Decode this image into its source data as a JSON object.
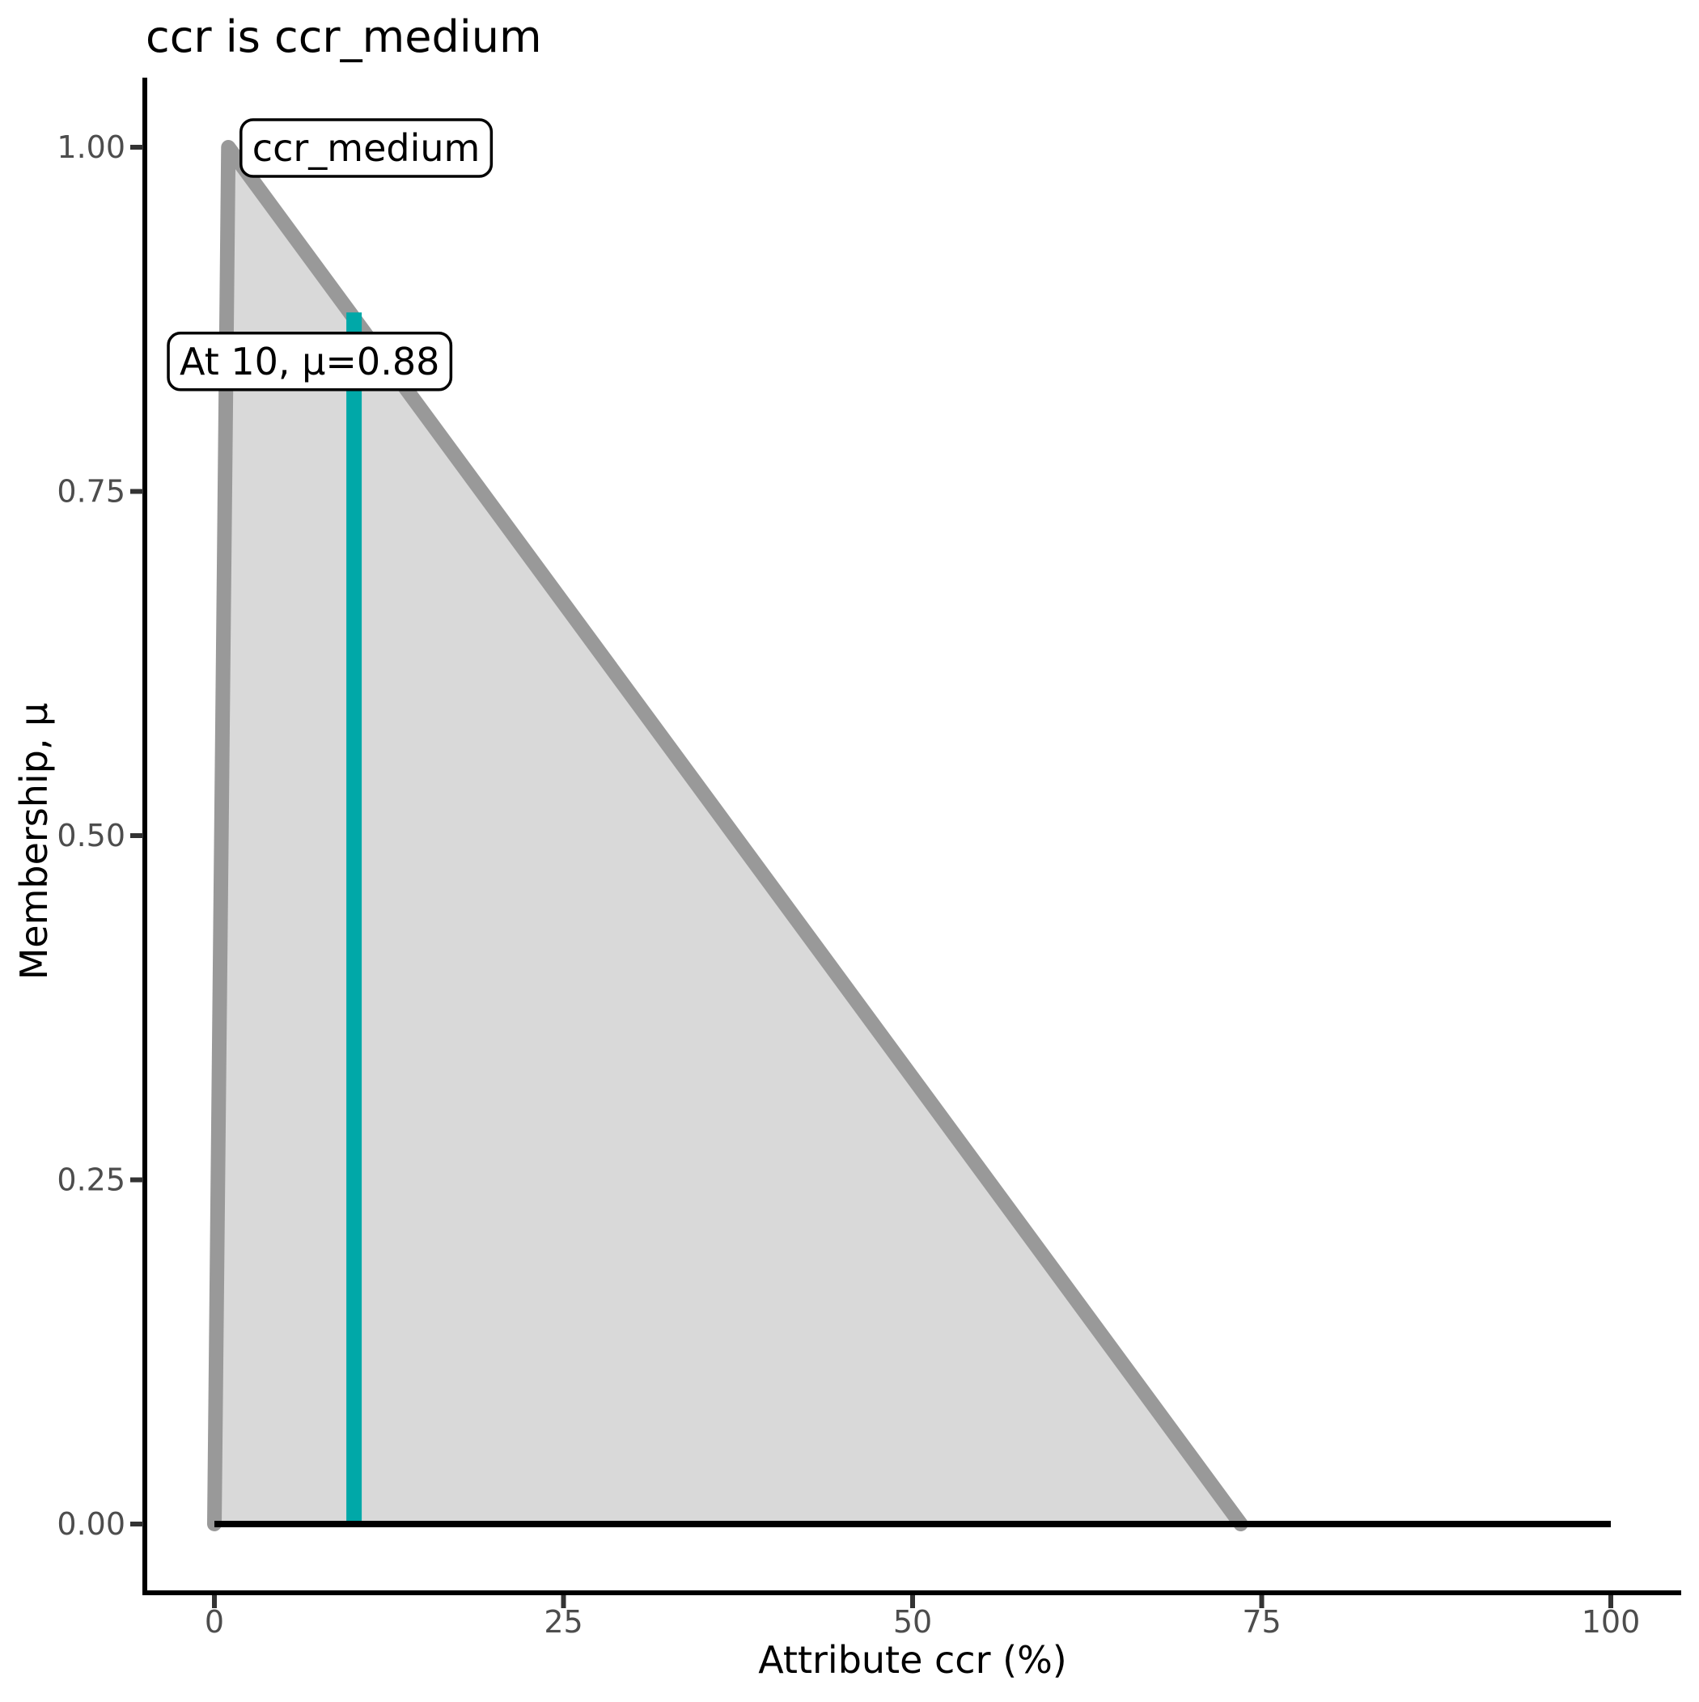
{
  "chart_data": {
    "type": "area",
    "title": "ccr is ccr_medium",
    "xlabel": "Attribute ccr (%)",
    "ylabel": "Membership, μ",
    "xlim": [
      0,
      100
    ],
    "ylim": [
      0,
      1
    ],
    "x_ticks": [
      0,
      25,
      50,
      75,
      100
    ],
    "x_tick_labels": [
      "0",
      "25",
      "50",
      "75",
      "100"
    ],
    "y_ticks": [
      0,
      0.25,
      0.5,
      0.75,
      1
    ],
    "y_tick_labels": [
      "0.00",
      "0.25",
      "0.50",
      "0.75",
      "1.00"
    ],
    "grid": false,
    "legend": "none",
    "membership_function": {
      "name": "ccr_medium",
      "shape": "triangle",
      "points_x": [
        0,
        1,
        73.5
      ],
      "points_y": [
        0,
        1,
        0
      ]
    },
    "universe_baseline": {
      "x_start": 0,
      "x_end": 100,
      "y": 0
    },
    "input": {
      "x": 10,
      "mu": 0.88
    },
    "annotations": [
      {
        "id": "mf-name-label",
        "text": "ccr_medium",
        "anchor_x": 1.9,
        "anchor_y": 1.0
      },
      {
        "id": "input-readout-label",
        "text": "At 10, μ=0.88",
        "anchor_x": -3.3,
        "anchor_y": 0.845
      }
    ],
    "colors": {
      "area_fill": "#d9d9d9",
      "mf_outline": "#999999",
      "input_line": "#00a8a8",
      "baseline": "#000000",
      "axis": "#000000",
      "tick_mark": "#333333",
      "tick_label": "#4d4d4d",
      "annotation_bg": "#ffffff",
      "annotation_border": "#000000",
      "text": "#000000"
    }
  }
}
